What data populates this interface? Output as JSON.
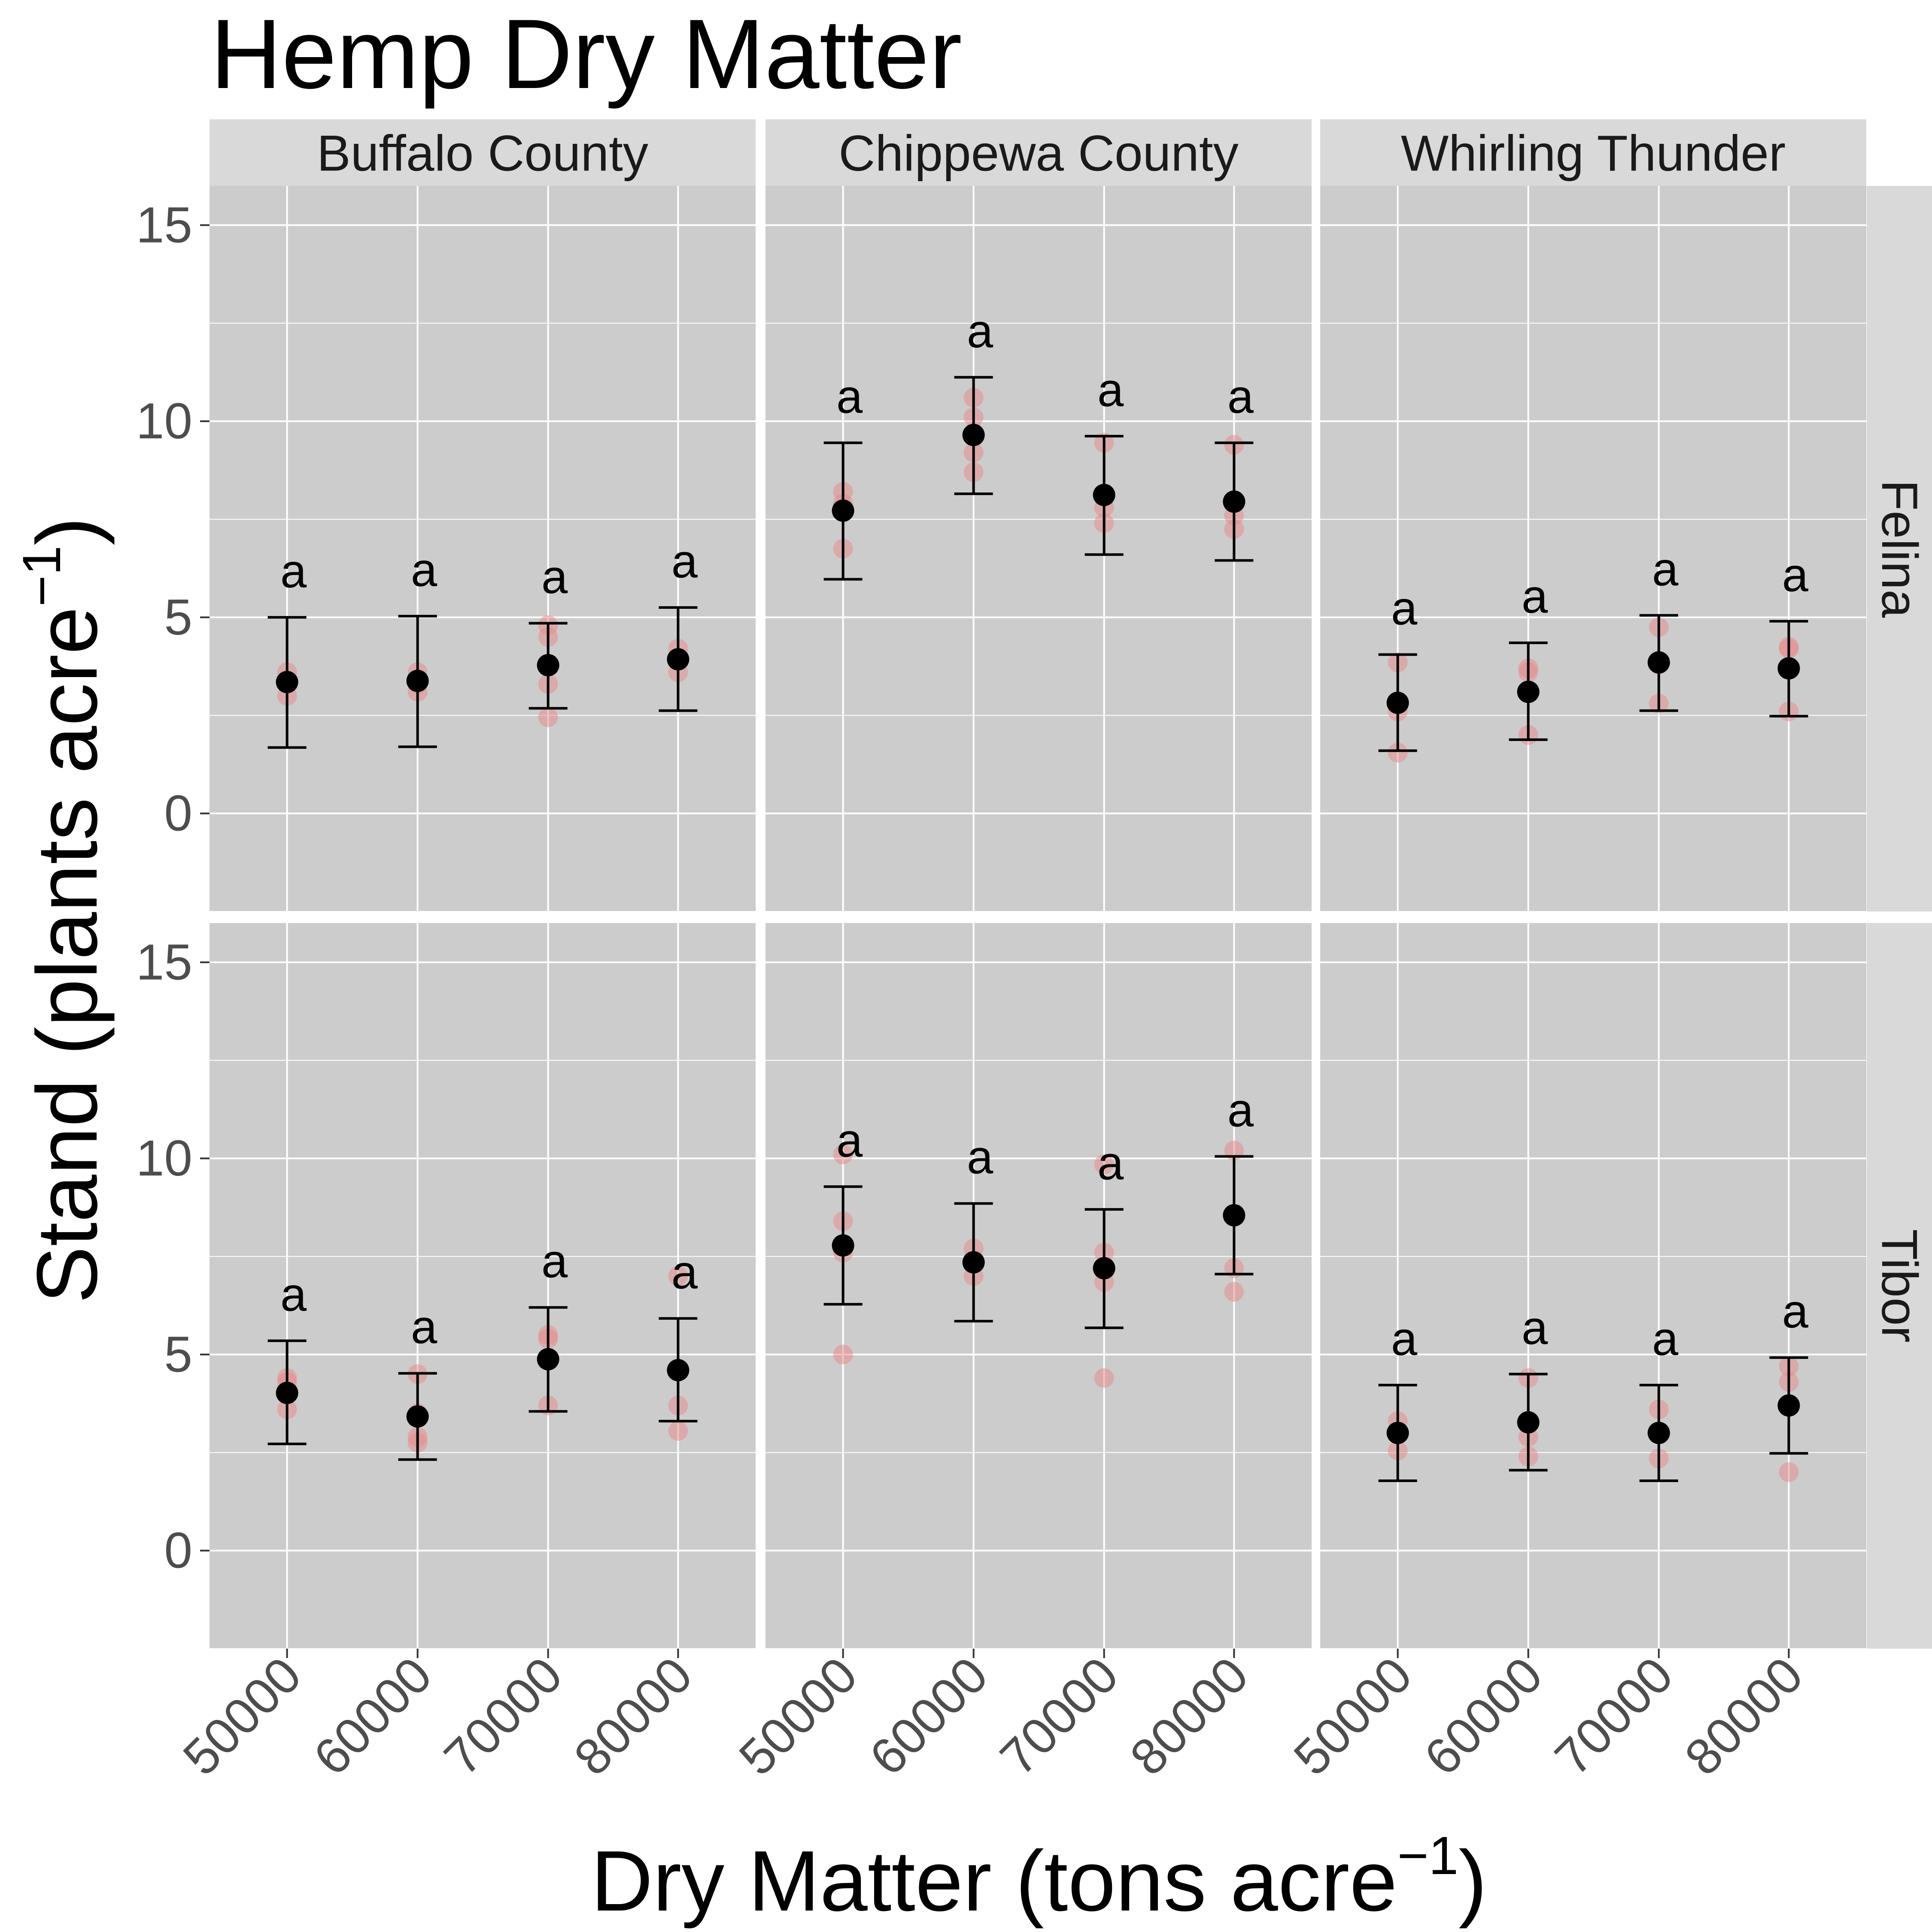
{
  "chart_data": {
    "type": "scatter",
    "title": "Hemp Dry Matter",
    "xlabel": "Dry Matter (tons acre",
    "xlabel_sup": "−1",
    "xlabel_end": ")",
    "ylabel": "Stand (plants acre",
    "ylabel_sup": "−1",
    "ylabel_end": ")",
    "x_ticks": [
      "50000",
      "60000",
      "70000",
      "80000"
    ],
    "y_ticks": [
      "0",
      "5",
      "10",
      "15"
    ],
    "ylim": [
      -2.5,
      16
    ],
    "columns": [
      "Buffalo County",
      "Chippewa County",
      "Whirling Thunder"
    ],
    "rows": [
      "Felina",
      "Tibor"
    ],
    "colors": {
      "panel": "#cccccc",
      "strip": "#d9d9d9",
      "grid": "#ffffff",
      "raw": "#e8878a",
      "mean": "#000000"
    },
    "panels": [
      {
        "column": "Buffalo County",
        "row": "Felina",
        "points": [
          {
            "x": "50000",
            "mean": 3.35,
            "lower": 1.68,
            "upper": 5.0,
            "letter": "a",
            "raw": [
              3.0,
              3.3,
              3.6
            ]
          },
          {
            "x": "60000",
            "mean": 3.38,
            "lower": 1.7,
            "upper": 5.03,
            "letter": "a",
            "raw": [
              3.1,
              3.3,
              3.6
            ]
          },
          {
            "x": "70000",
            "mean": 3.78,
            "lower": 2.68,
            "upper": 4.85,
            "letter": "a",
            "raw": [
              2.45,
              3.3,
              4.5,
              4.8
            ]
          },
          {
            "x": "80000",
            "mean": 3.93,
            "lower": 2.62,
            "upper": 5.25,
            "letter": "a",
            "raw": [
              3.6,
              3.9,
              4.2
            ]
          }
        ]
      },
      {
        "column": "Chippewa County",
        "row": "Felina",
        "points": [
          {
            "x": "50000",
            "mean": 7.72,
            "lower": 5.97,
            "upper": 9.45,
            "letter": "a",
            "raw": [
              6.75,
              7.9,
              8.2
            ]
          },
          {
            "x": "60000",
            "mean": 9.65,
            "lower": 8.15,
            "upper": 11.12,
            "letter": "a",
            "raw": [
              8.7,
              9.2,
              10.1,
              10.6
            ]
          },
          {
            "x": "70000",
            "mean": 8.12,
            "lower": 6.6,
            "upper": 9.62,
            "letter": "a",
            "raw": [
              7.4,
              7.8,
              9.45
            ]
          },
          {
            "x": "80000",
            "mean": 7.95,
            "lower": 6.45,
            "upper": 9.45,
            "letter": "a",
            "raw": [
              7.25,
              7.6,
              9.4
            ]
          }
        ]
      },
      {
        "column": "Whirling Thunder",
        "row": "Felina",
        "points": [
          {
            "x": "50000",
            "mean": 2.82,
            "lower": 1.6,
            "upper": 4.05,
            "letter": "a",
            "raw": [
              1.55,
              2.6,
              3.85
            ]
          },
          {
            "x": "60000",
            "mean": 3.1,
            "lower": 1.88,
            "upper": 4.35,
            "letter": "a",
            "raw": [
              2.0,
              3.6,
              3.7
            ]
          },
          {
            "x": "70000",
            "mean": 3.85,
            "lower": 2.62,
            "upper": 5.05,
            "letter": "a",
            "raw": [
              2.8,
              3.8,
              4.75
            ]
          },
          {
            "x": "80000",
            "mean": 3.7,
            "lower": 2.48,
            "upper": 4.9,
            "letter": "a",
            "raw": [
              2.6,
              4.2,
              4.25
            ]
          }
        ]
      },
      {
        "column": "Buffalo County",
        "row": "Tibor",
        "points": [
          {
            "x": "50000",
            "mean": 4.02,
            "lower": 2.72,
            "upper": 5.35,
            "letter": "a",
            "raw": [
              3.6,
              4.3,
              4.4
            ]
          },
          {
            "x": "60000",
            "mean": 3.42,
            "lower": 2.32,
            "upper": 4.52,
            "letter": "a",
            "raw": [
              2.75,
              2.9,
              3.5,
              4.5
            ]
          },
          {
            "x": "70000",
            "mean": 4.88,
            "lower": 3.55,
            "upper": 6.2,
            "letter": "a",
            "raw": [
              3.7,
              5.4,
              5.5
            ]
          },
          {
            "x": "80000",
            "mean": 4.6,
            "lower": 3.3,
            "upper": 5.92,
            "letter": "a",
            "raw": [
              3.05,
              3.7,
              7.0
            ]
          }
        ]
      },
      {
        "column": "Chippewa County",
        "row": "Tibor",
        "points": [
          {
            "x": "50000",
            "mean": 7.78,
            "lower": 6.28,
            "upper": 9.28,
            "letter": "a",
            "raw": [
              5.0,
              7.6,
              8.4,
              10.1
            ]
          },
          {
            "x": "60000",
            "mean": 7.35,
            "lower": 5.85,
            "upper": 8.85,
            "letter": "a",
            "raw": [
              7.0,
              7.4,
              7.7
            ]
          },
          {
            "x": "70000",
            "mean": 7.2,
            "lower": 5.68,
            "upper": 8.7,
            "letter": "a",
            "raw": [
              4.4,
              6.85,
              7.6,
              9.85
            ]
          },
          {
            "x": "80000",
            "mean": 8.55,
            "lower": 7.05,
            "upper": 10.05,
            "letter": "a",
            "raw": [
              6.6,
              7.2,
              10.2
            ]
          }
        ]
      },
      {
        "column": "Whirling Thunder",
        "row": "Tibor",
        "points": [
          {
            "x": "50000",
            "mean": 3.0,
            "lower": 1.78,
            "upper": 4.22,
            "letter": "a",
            "raw": [
              2.55,
              3.3
            ]
          },
          {
            "x": "60000",
            "mean": 3.27,
            "lower": 2.05,
            "upper": 4.5,
            "letter": "a",
            "raw": [
              2.4,
              2.9,
              4.4
            ]
          },
          {
            "x": "70000",
            "mean": 3.0,
            "lower": 1.78,
            "upper": 4.22,
            "letter": "a",
            "raw": [
              2.35,
              3.6
            ]
          },
          {
            "x": "80000",
            "mean": 3.7,
            "lower": 2.48,
            "upper": 4.92,
            "letter": "a",
            "raw": [
              2.0,
              4.3,
              4.7
            ]
          }
        ]
      }
    ]
  }
}
